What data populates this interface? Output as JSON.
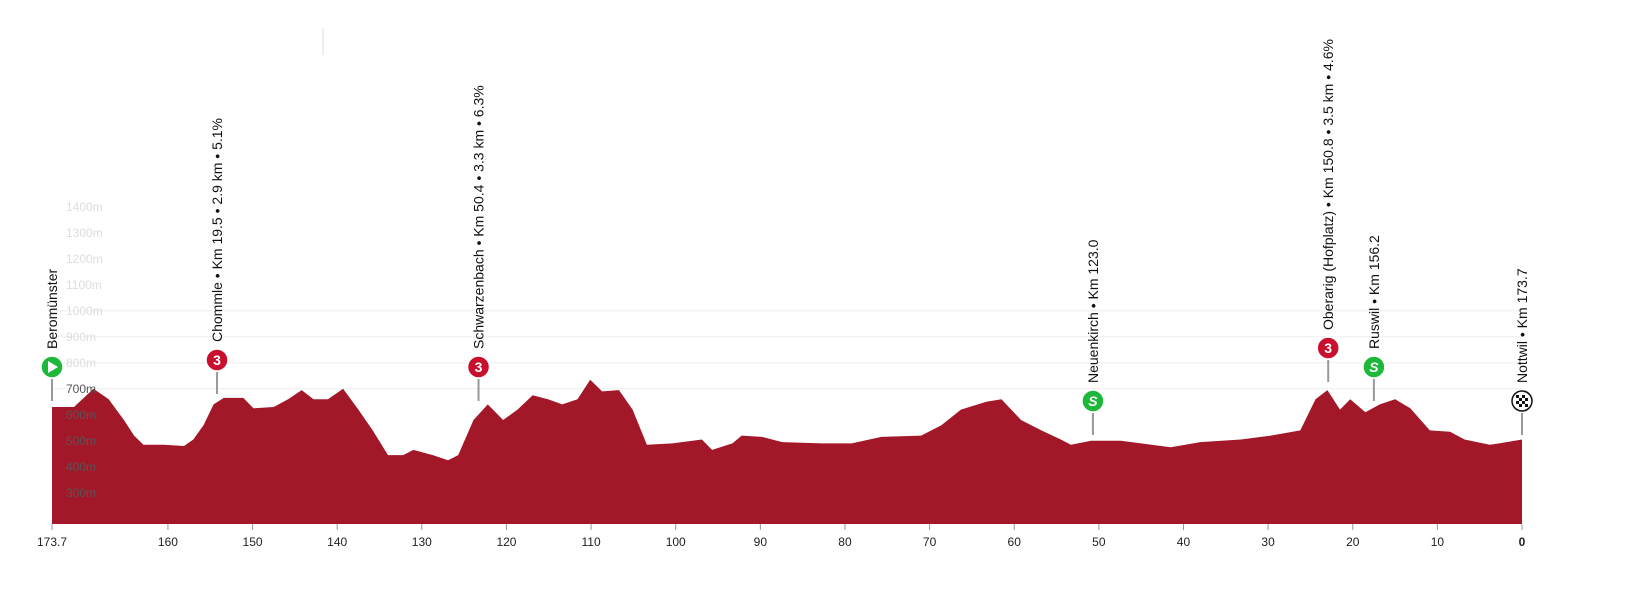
{
  "chart_data": {
    "type": "area",
    "xlabel": "",
    "ylabel": "",
    "x_reversed": true,
    "xlim": [
      173.7,
      0
    ],
    "ylim": [
      180,
      1400
    ],
    "grid": true,
    "fill_color": "#a31829",
    "x_ticks": [
      "173.7",
      "160",
      "150",
      "140",
      "130",
      "120",
      "110",
      "100",
      "90",
      "80",
      "70",
      "60",
      "50",
      "40",
      "30",
      "20",
      "10",
      "0"
    ],
    "y_ticks": [
      "300m",
      "400m",
      "500m",
      "600m",
      "700m",
      "800m",
      "900m",
      "1000m",
      "1100m",
      "1200m",
      "1300m",
      "1400m"
    ],
    "profile": [
      [
        173.7,
        630
      ],
      [
        171.1,
        630
      ],
      [
        168.8,
        700
      ],
      [
        167.0,
        660
      ],
      [
        165.2,
        580
      ],
      [
        164.0,
        520
      ],
      [
        162.9,
        485
      ],
      [
        160.5,
        485
      ],
      [
        158.1,
        480
      ],
      [
        157.0,
        505
      ],
      [
        155.8,
        560
      ],
      [
        154.6,
        640
      ],
      [
        153.4,
        665
      ],
      [
        151.1,
        665
      ],
      [
        149.9,
        625
      ],
      [
        147.5,
        630
      ],
      [
        145.8,
        660
      ],
      [
        144.2,
        695
      ],
      [
        142.8,
        660
      ],
      [
        141.1,
        660
      ],
      [
        139.3,
        700
      ],
      [
        137.5,
        620
      ],
      [
        135.8,
        540
      ],
      [
        134.0,
        445
      ],
      [
        132.2,
        445
      ],
      [
        131.0,
        465
      ],
      [
        128.7,
        445
      ],
      [
        126.9,
        425
      ],
      [
        125.7,
        445
      ],
      [
        123.9,
        580
      ],
      [
        122.2,
        640
      ],
      [
        120.4,
        580
      ],
      [
        118.7,
        620
      ],
      [
        116.9,
        675
      ],
      [
        115.1,
        660
      ],
      [
        113.4,
        640
      ],
      [
        111.6,
        660
      ],
      [
        110.1,
        735
      ],
      [
        108.7,
        690
      ],
      [
        106.7,
        695
      ],
      [
        105.1,
        620
      ],
      [
        103.4,
        485
      ],
      [
        100.4,
        490
      ],
      [
        96.9,
        505
      ],
      [
        95.7,
        465
      ],
      [
        93.3,
        490
      ],
      [
        92.2,
        520
      ],
      [
        89.8,
        515
      ],
      [
        87.4,
        495
      ],
      [
        82.7,
        490
      ],
      [
        79.2,
        490
      ],
      [
        75.7,
        515
      ],
      [
        71.0,
        520
      ],
      [
        68.6,
        560
      ],
      [
        66.3,
        620
      ],
      [
        63.3,
        650
      ],
      [
        61.5,
        660
      ],
      [
        59.2,
        580
      ],
      [
        56.8,
        540
      ],
      [
        54.5,
        505
      ],
      [
        53.3,
        485
      ],
      [
        50.9,
        500
      ],
      [
        47.4,
        500
      ],
      [
        43.8,
        485
      ],
      [
        41.5,
        475
      ],
      [
        38.0,
        495
      ],
      [
        33.2,
        505
      ],
      [
        29.7,
        520
      ],
      [
        26.2,
        540
      ],
      [
        24.4,
        660
      ],
      [
        23.0,
        695
      ],
      [
        21.5,
        620
      ],
      [
        20.3,
        660
      ],
      [
        18.5,
        610
      ],
      [
        16.8,
        640
      ],
      [
        15.0,
        660
      ],
      [
        13.2,
        625
      ],
      [
        10.9,
        540
      ],
      [
        8.5,
        535
      ],
      [
        6.8,
        505
      ],
      [
        3.8,
        485
      ],
      [
        2.7,
        490
      ],
      [
        0,
        505
      ]
    ],
    "markers": [
      {
        "km_remaining": 173.7,
        "label": "Beromünster",
        "type": "start",
        "icon": "play-icon",
        "color": "#1db83a"
      },
      {
        "km_remaining": 154.2,
        "label": "Chommle • Km 19.5 • 2.9 km • 5.1%",
        "type": "climb-cat-3",
        "badge": "3",
        "color": "#c8102e"
      },
      {
        "km_remaining": 123.3,
        "label": "Schwarzenbach • Km 50.4 • 3.3 km • 6.3%",
        "type": "climb-cat-3",
        "badge": "3",
        "color": "#c8102e"
      },
      {
        "km_remaining": 50.7,
        "label": "Neuenkirch • Km 123.0",
        "type": "sprint",
        "badge": "S",
        "color": "#1db83a"
      },
      {
        "km_remaining": 22.9,
        "label": "Oberarig (Hofplatz) • Km 150.8 • 3.5 km • 4.6%",
        "type": "climb-cat-3",
        "badge": "3",
        "color": "#c8102e"
      },
      {
        "km_remaining": 17.5,
        "label": "Ruswil • Km 156.2",
        "type": "sprint",
        "badge": "S",
        "color": "#1db83a"
      },
      {
        "km_remaining": 0,
        "label": "Nottwil • Km 173.7",
        "type": "finish",
        "icon": "checkered-flag-icon",
        "color": "#111111"
      }
    ]
  }
}
